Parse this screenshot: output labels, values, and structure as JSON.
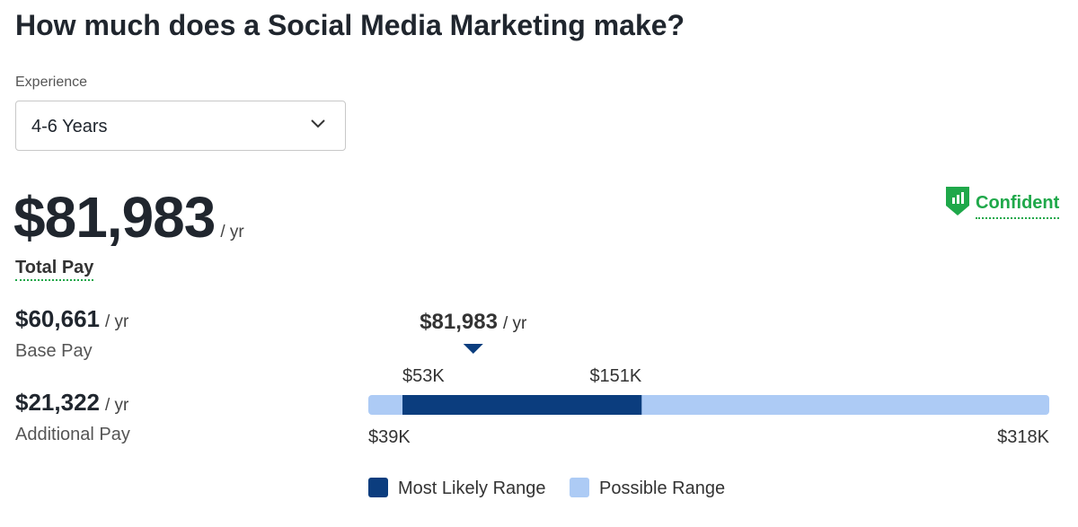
{
  "header": {
    "title": "How much does a Social Media Marketing make?"
  },
  "filter": {
    "label": "Experience",
    "selected": "4-6 Years"
  },
  "total": {
    "amount": "$81,983",
    "unit": "/ yr",
    "label": "Total Pay"
  },
  "confidence": "Confident",
  "breakdown": [
    {
      "amount": "$60,661",
      "unit": "/ yr",
      "label": "Base Pay"
    },
    {
      "amount": "$21,322",
      "unit": "/ yr",
      "label": "Additional Pay"
    }
  ],
  "range": {
    "marker": {
      "value": 81983,
      "label": "$81,983",
      "unit": "/ yr"
    },
    "likely": [
      {
        "value": 53000,
        "label": "$53K"
      },
      {
        "value": 151000,
        "label": "$151K"
      }
    ],
    "possible": [
      {
        "value": 39000,
        "label": "$39K"
      },
      {
        "value": 318000,
        "label": "$318K"
      }
    ],
    "legend": [
      {
        "name": "Most Likely Range",
        "color": "#0b3d7e"
      },
      {
        "name": "Possible Range",
        "color": "#adcbf5"
      }
    ]
  }
}
